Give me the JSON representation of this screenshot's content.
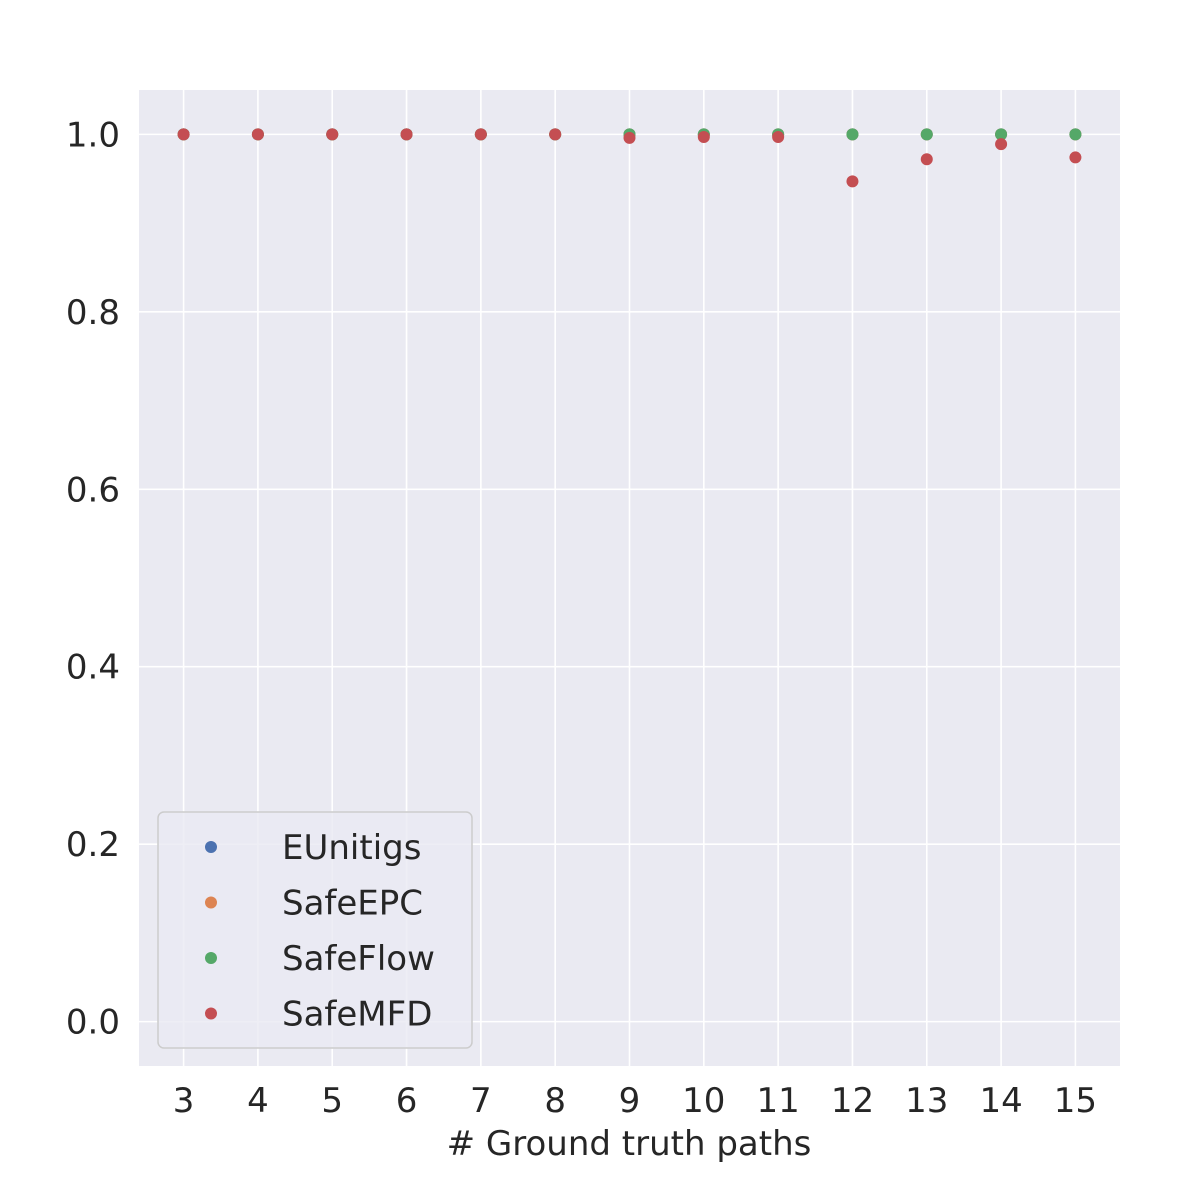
{
  "chart_data": {
    "type": "scatter",
    "title": "",
    "xlabel": "# Ground truth paths",
    "ylabel": "",
    "x_categories": [
      "3",
      "4",
      "5",
      "6",
      "7",
      "8",
      "9",
      "10",
      "11",
      "12",
      "13",
      "14",
      "15"
    ],
    "y_ticks": [
      "0.0",
      "0.2",
      "0.4",
      "0.6",
      "0.8",
      "1.0"
    ],
    "ylim": [
      -0.05,
      1.05
    ],
    "grid": true,
    "legend_position": "lower-left",
    "series": [
      {
        "name": "EUnitigs",
        "color": "#4c72b0",
        "x": [
          3,
          4,
          5,
          6,
          7,
          8,
          9,
          10,
          11,
          12,
          13,
          14,
          15
        ],
        "values": [
          1.0,
          1.0,
          1.0,
          1.0,
          1.0,
          1.0,
          1.0,
          1.0,
          1.0,
          1.0,
          1.0,
          1.0,
          1.0
        ]
      },
      {
        "name": "SafeEPC",
        "color": "#dd8452",
        "x": [
          3,
          4,
          5,
          6,
          7,
          8,
          9,
          10,
          11,
          12,
          13,
          14,
          15
        ],
        "values": [
          1.0,
          1.0,
          1.0,
          1.0,
          1.0,
          1.0,
          1.0,
          1.0,
          1.0,
          1.0,
          1.0,
          1.0,
          1.0
        ]
      },
      {
        "name": "SafeFlow",
        "color": "#55a868",
        "x": [
          3,
          4,
          5,
          6,
          7,
          8,
          9,
          10,
          11,
          12,
          13,
          14,
          15
        ],
        "values": [
          1.0,
          1.0,
          1.0,
          1.0,
          1.0,
          1.0,
          1.0,
          1.0,
          1.0,
          1.0,
          1.0,
          1.0,
          1.0
        ]
      },
      {
        "name": "SafeMFD",
        "color": "#c44e52",
        "x": [
          3,
          4,
          5,
          6,
          7,
          8,
          9,
          10,
          11,
          12,
          13,
          14,
          15
        ],
        "values": [
          1.0,
          1.0,
          1.0,
          1.0,
          1.0,
          1.0,
          0.996,
          0.997,
          0.997,
          0.947,
          0.972,
          0.989,
          0.974
        ]
      }
    ],
    "style": {
      "plot_background": "#eaeaf2",
      "grid_color": "#ffffff",
      "text_color": "#262626"
    }
  }
}
